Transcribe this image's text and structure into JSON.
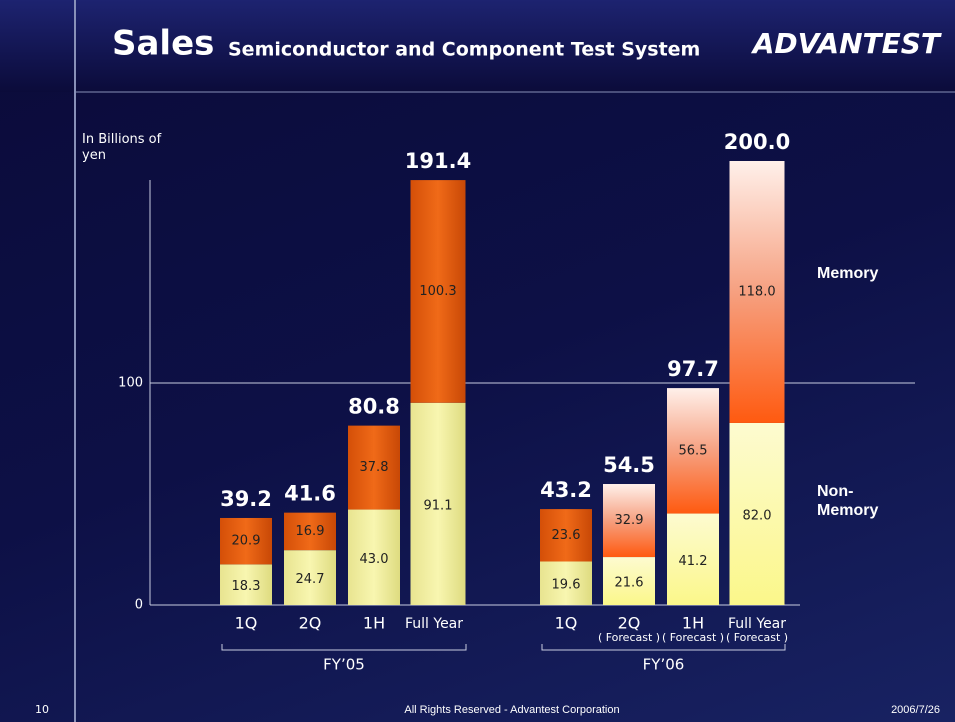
{
  "title": "Sales",
  "subtitle": "Semiconductor and Component Test System",
  "logo": "ADVANTEST",
  "footer": {
    "page": "10",
    "copyright": "All Rights Reserved - Advantest Corporation",
    "date": "2006/7/26"
  },
  "chart_data": {
    "type": "stacked_bar",
    "y_label": "In Billions of yen",
    "categories": [
      "1Q",
      "2Q",
      "1H",
      "Full Year",
      "1Q",
      "2Q",
      "1H",
      "Full Year"
    ],
    "sublabels": [
      null,
      null,
      null,
      null,
      null,
      "( Forecast )",
      "( Forecast )",
      "( Forecast )"
    ],
    "groups": [
      "FY’05",
      "FY’06"
    ],
    "series": [
      {
        "name": "Non-Memory",
        "color": "#f4f2a0",
        "values": [
          18.3,
          24.7,
          43.0,
          91.1,
          19.6,
          21.6,
          41.2,
          82.0
        ],
        "value_labels": [
          "18.3",
          "24.7",
          "43.0",
          "91.1",
          "19.6",
          "21.6",
          "41.2",
          "82.0"
        ]
      },
      {
        "name": "Memory",
        "color": "#e8600f",
        "values": [
          20.9,
          16.9,
          37.8,
          100.3,
          23.6,
          32.9,
          56.5,
          118.0
        ],
        "value_labels": [
          "20.9",
          "16.9",
          "37.8",
          "100.3",
          "23.6",
          "32.9",
          "56.5",
          "118.0"
        ]
      }
    ],
    "totals": [
      39.2,
      41.6,
      80.8,
      191.4,
      43.2,
      54.5,
      97.7,
      200.0
    ],
    "totals_labels": [
      "39.2",
      "41.6",
      "80.8",
      "191.4",
      "43.2",
      "54.5",
      "97.7",
      "200.0"
    ],
    "ylim": [
      0,
      200
    ],
    "yticks": [
      0,
      100
    ],
    "grid": true
  }
}
